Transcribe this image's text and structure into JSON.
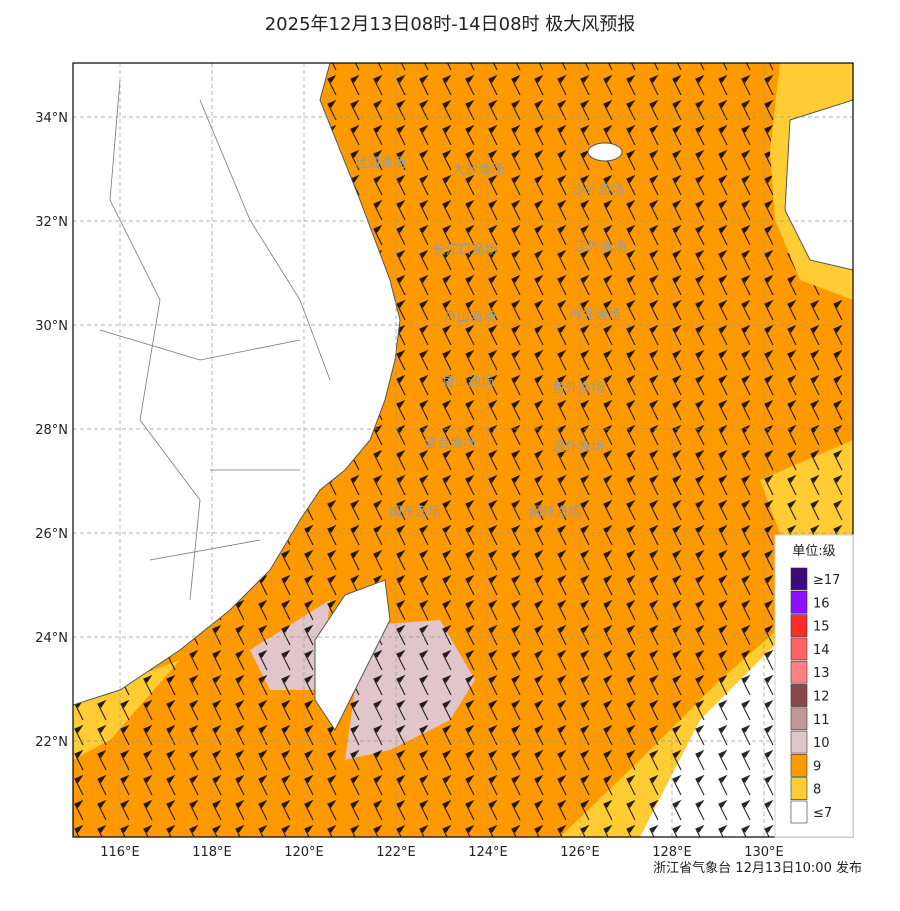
{
  "title": "2025年12月13日08时-14日08时 极大风预报",
  "lat_ticks": [
    {
      "value": 34,
      "label": "34°N"
    },
    {
      "value": 32,
      "label": "32°N"
    },
    {
      "value": 30,
      "label": "30°N"
    },
    {
      "value": 28,
      "label": "28°N"
    },
    {
      "value": 26,
      "label": "26°N"
    },
    {
      "value": 24,
      "label": "24°N"
    },
    {
      "value": 22,
      "label": "22°N"
    }
  ],
  "lon_ticks": [
    {
      "value": 116,
      "label": "116°E"
    },
    {
      "value": 118,
      "label": "118°E"
    },
    {
      "value": 120,
      "label": "120°E"
    },
    {
      "value": 122,
      "label": "122°E"
    },
    {
      "value": 124,
      "label": "124°E"
    },
    {
      "value": 126,
      "label": "126°E"
    },
    {
      "value": 128,
      "label": "128°E"
    },
    {
      "value": 130,
      "label": "130°E"
    }
  ],
  "sea_areas": [
    "吕泗渔场",
    "大沙渔场",
    "沙外渔场",
    "长江口渔场",
    "江外渔场",
    "舟山渔场",
    "舟外渔场",
    "鱼山渔场",
    "鱼外渔场",
    "温台渔场",
    "温外渔场",
    "闽东渔场",
    "闽外渔场"
  ],
  "legend": {
    "title": "单位:级",
    "items": [
      {
        "label": "≥17",
        "color": "#3d0a7a"
      },
      {
        "label": "16",
        "color": "#8a10ff"
      },
      {
        "label": "15",
        "color": "#ff2a2a"
      },
      {
        "label": "14",
        "color": "#ff6464"
      },
      {
        "label": "13",
        "color": "#ff8080"
      },
      {
        "label": "12",
        "color": "#8b4848"
      },
      {
        "label": "11",
        "color": "#c49898"
      },
      {
        "label": "10",
        "color": "#e0c6ca"
      },
      {
        "label": "9",
        "color": "#ff9900"
      },
      {
        "label": "8",
        "color": "#ffcc33"
      },
      {
        "label": "≤7",
        "color": "#ffffff"
      }
    ]
  },
  "footer": "浙江省气象台 12月13日10:00 发布"
}
